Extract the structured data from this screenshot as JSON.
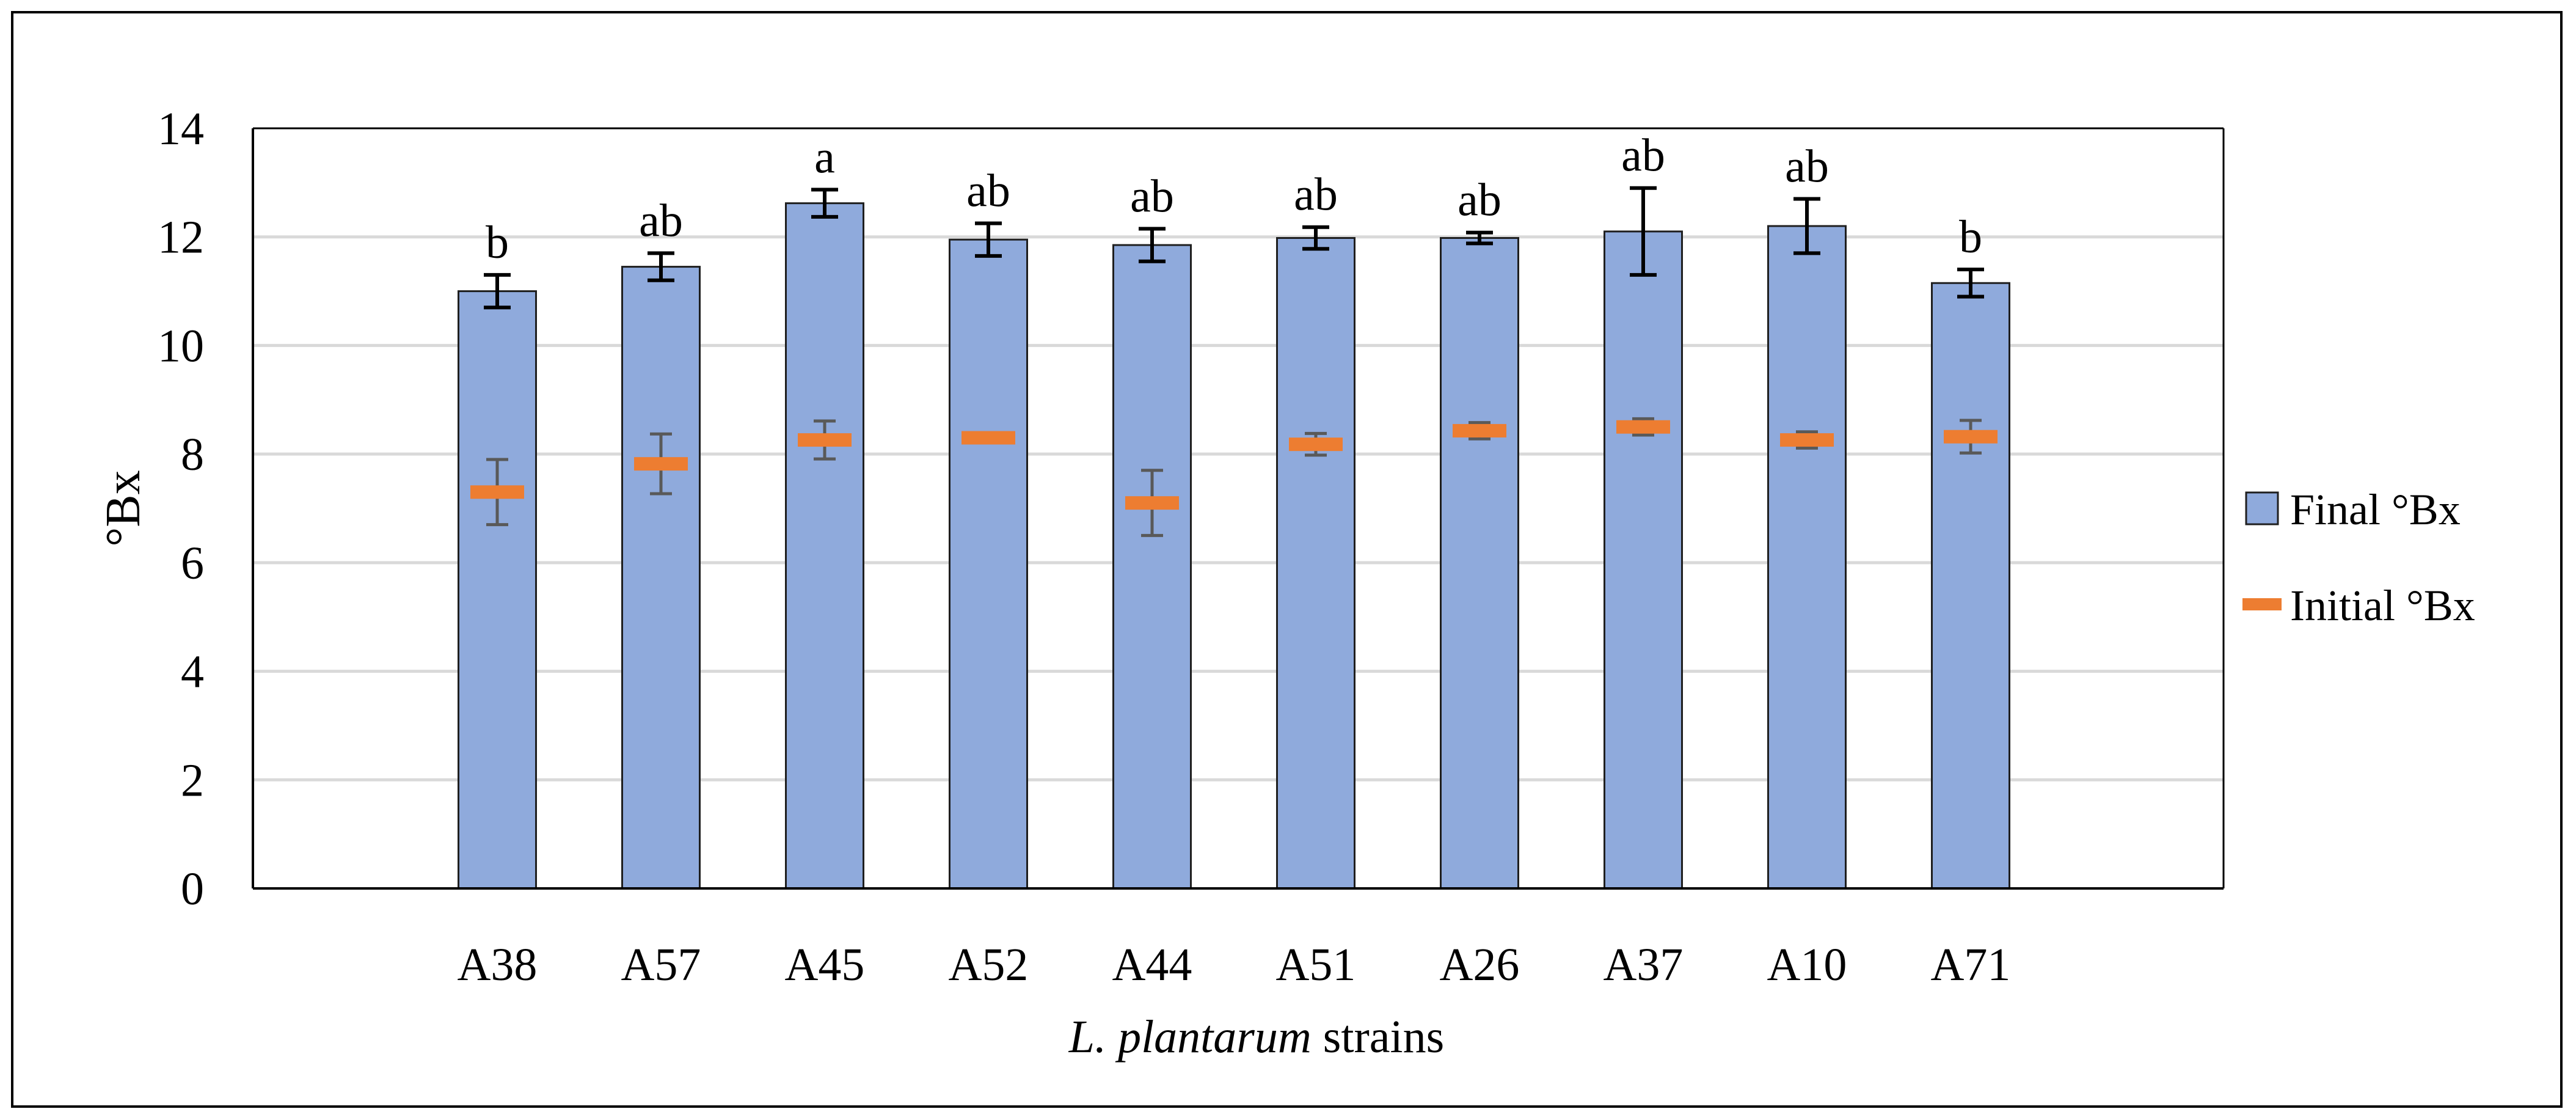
{
  "chart_data": {
    "type": "bar",
    "title": "",
    "xlabel": {
      "italic": "L. plantarum",
      "rest": " strains"
    },
    "ylabel": "°Bx",
    "ylim": [
      0,
      14
    ],
    "yticks": [
      0,
      2,
      4,
      6,
      8,
      10,
      12,
      14
    ],
    "grid": true,
    "legend_position": "right",
    "categories": [
      "A38",
      "A57",
      "A45",
      "A52",
      "A44",
      "A51",
      "A26",
      "A37",
      "A10",
      "A71"
    ],
    "series": [
      {
        "name": "Final °Bx",
        "mark": "bar",
        "color": "#8FAADC",
        "values": [
          11.0,
          11.45,
          12.62,
          11.95,
          11.85,
          11.98,
          11.98,
          12.1,
          12.2,
          11.15
        ],
        "errors": [
          0.3,
          0.25,
          0.25,
          0.3,
          0.3,
          0.2,
          0.1,
          0.8,
          0.5,
          0.25
        ]
      },
      {
        "name": "Initial °Bx",
        "mark": "dash",
        "color": "#ED7D31",
        "values": [
          7.3,
          7.82,
          8.26,
          8.3,
          7.1,
          8.18,
          8.43,
          8.5,
          8.26,
          8.32
        ],
        "errors": [
          0.6,
          0.55,
          0.35,
          0.05,
          0.6,
          0.2,
          0.15,
          0.15,
          0.15,
          0.3
        ]
      }
    ],
    "significance_labels": [
      "b",
      "ab",
      "a",
      "ab",
      "ab",
      "ab",
      "ab",
      "ab",
      "ab",
      "b"
    ]
  },
  "colors": {
    "bar_fill": "#8FAADC",
    "bar_stroke": "#1F1F1F",
    "initial_marker": "#ED7D31",
    "final_error_bar": "#000000",
    "initial_error_bar": "#595959",
    "gridline": "#D9D9D9",
    "axis": "#000000"
  }
}
